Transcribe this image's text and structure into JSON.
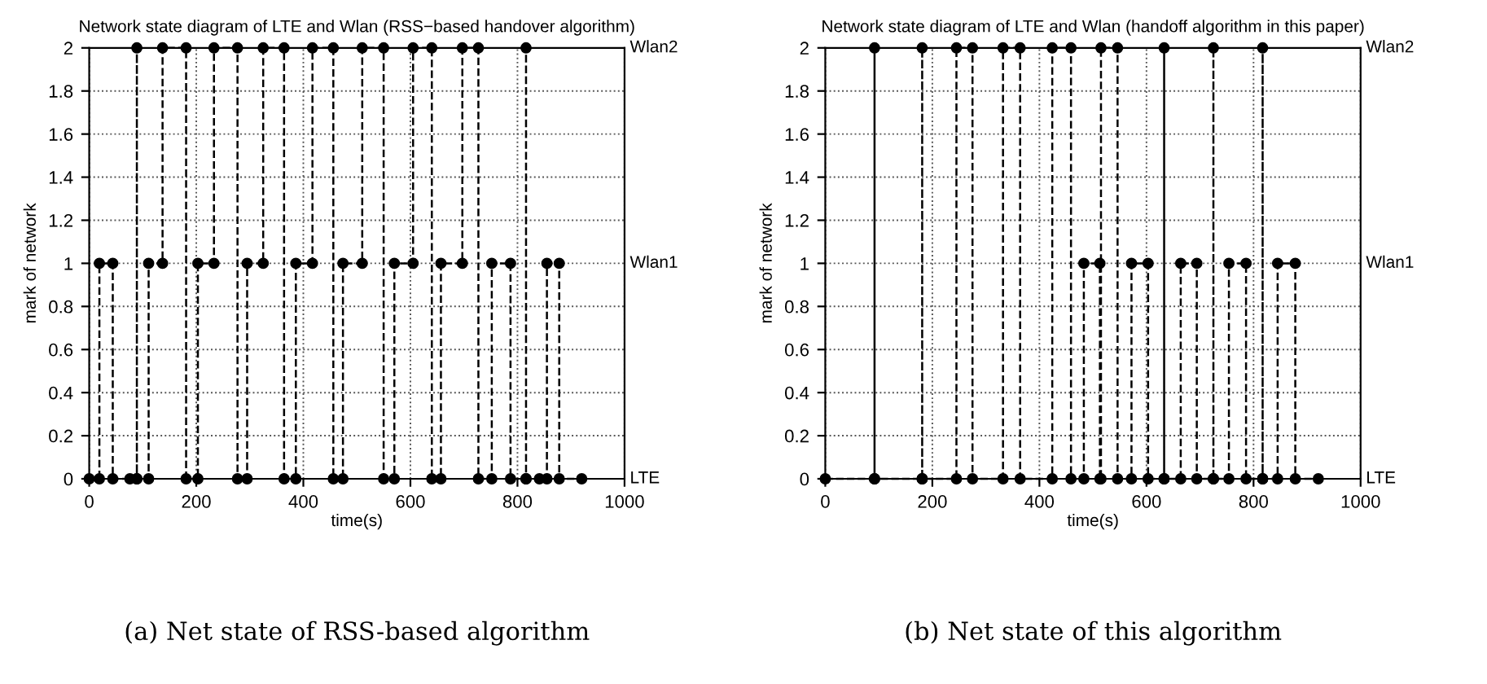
{
  "chart_data": [
    {
      "type": "line",
      "title": "Network state diagram of LTE and Wlan (RSS−based handover algorithm)",
      "xlabel": "time(s)",
      "ylabel": "mark of network",
      "series": [
        {
          "color": "#000000",
          "x": [
            0,
            19,
            19,
            44,
            44,
            76,
            89,
            89,
            89,
            111,
            111,
            137,
            137,
            181,
            181,
            203,
            203,
            233,
            233,
            277,
            277,
            295,
            295,
            325,
            325,
            364,
            364,
            386,
            386,
            417,
            417,
            456,
            456,
            474,
            474,
            510,
            510,
            550,
            550,
            570,
            570,
            605,
            605,
            640,
            640,
            657,
            657,
            697,
            697,
            727,
            727,
            752,
            752,
            787,
            787,
            816,
            816,
            816,
            841,
            855,
            855,
            878,
            878,
            920
          ],
          "values": [
            0,
            0,
            1,
            1,
            0,
            0,
            0,
            2,
            0,
            0,
            1,
            1,
            2,
            2,
            0,
            0,
            1,
            1,
            2,
            2,
            0,
            0,
            1,
            1,
            2,
            2,
            0,
            0,
            1,
            1,
            2,
            2,
            0,
            0,
            1,
            1,
            2,
            2,
            0,
            0,
            1,
            1,
            2,
            2,
            0,
            0,
            1,
            1,
            2,
            2,
            0,
            0,
            1,
            1,
            0,
            0,
            2,
            0,
            0,
            0,
            1,
            1,
            0,
            0
          ]
        }
      ],
      "annotations": [
        "Wlan2",
        "Wlan1",
        "LTE",
        "(a) Net state of RSS-based algorithm"
      ],
      "xlim": [
        0,
        1000
      ],
      "ylim": [
        0,
        2
      ],
      "xticks": [
        0,
        200,
        400,
        600,
        800,
        1000
      ],
      "yticks": [
        0,
        0.2,
        0.4,
        0.6,
        0.8,
        1,
        1.2,
        1.4,
        1.6,
        1.8,
        2
      ],
      "grid": true,
      "marker": "circle",
      "line_style": "dashed"
    },
    {
      "type": "line",
      "title": "Network state diagram of LTE and Wlan (handoff algorithm in this paper)",
      "xlabel": "time(s)",
      "ylabel": "mark of network",
      "series": [
        {
          "color": "#000000",
          "x": [
            0,
            92,
            92,
            92,
            181,
            181,
            181,
            245,
            245,
            275,
            275,
            332,
            332,
            364,
            364,
            424,
            424,
            459,
            459,
            483,
            483,
            513,
            513,
            515,
            515,
            546,
            546,
            572,
            572,
            603,
            603,
            633,
            633,
            633,
            664,
            664,
            694,
            694,
            725,
            725,
            725,
            754,
            754,
            786,
            786,
            817,
            817,
            817,
            845,
            845,
            878,
            878,
            921
          ],
          "values": [
            0,
            0,
            2,
            0,
            0,
            2,
            0,
            0,
            2,
            2,
            0,
            0,
            2,
            2,
            0,
            0,
            2,
            2,
            0,
            0,
            1,
            1,
            0,
            0,
            2,
            2,
            0,
            0,
            1,
            1,
            0,
            0,
            2,
            0,
            0,
            1,
            1,
            0,
            0,
            2,
            0,
            0,
            1,
            1,
            0,
            0,
            2,
            0,
            0,
            1,
            1,
            0,
            0
          ]
        }
      ],
      "annotations": [
        "Wlan2",
        "Wlan1",
        "LTE",
        "(b) Net state of this algorithm"
      ],
      "xlim": [
        0,
        1000
      ],
      "ylim": [
        0,
        2
      ],
      "xticks": [
        0,
        200,
        400,
        600,
        800,
        1000
      ],
      "yticks": [
        0,
        0.2,
        0.4,
        0.6,
        0.8,
        1,
        1.2,
        1.4,
        1.6,
        1.8,
        2
      ],
      "grid": true,
      "marker": "circle",
      "line_style": "dashed"
    }
  ]
}
